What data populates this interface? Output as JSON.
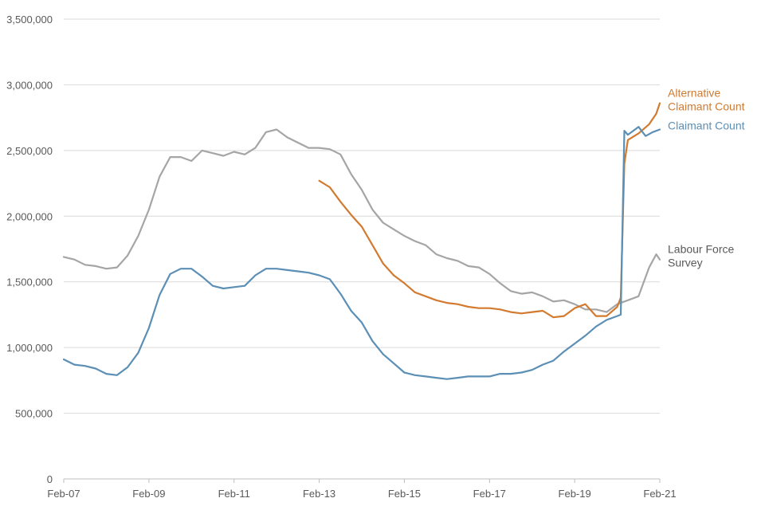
{
  "chart_data": {
    "type": "line",
    "title": "",
    "xlabel": "",
    "ylabel": "",
    "ylim": [
      0,
      3500000
    ],
    "yticks": [
      0,
      500000,
      1000000,
      1500000,
      2000000,
      2500000,
      3000000,
      3500000
    ],
    "ytick_labels": [
      "0",
      "500,000",
      "1,000,000",
      "1,500,000",
      "2,000,000",
      "2,500,000",
      "3,000,000",
      "3,500,000"
    ],
    "xlim": [
      "2007-02",
      "2021-02"
    ],
    "xtick_labels": [
      "Feb-07",
      "Feb-09",
      "Feb-11",
      "Feb-13",
      "Feb-15",
      "Feb-17",
      "Feb-19",
      "Feb-21"
    ],
    "xtick_values": [
      "2007-02",
      "2009-02",
      "2011-02",
      "2013-02",
      "2015-02",
      "2017-02",
      "2019-02",
      "2021-02"
    ],
    "grid": "horizontal",
    "legend": "inline-right",
    "series": [
      {
        "name": "Labour Force Survey",
        "label_lines": [
          "Labour Force",
          "Survey"
        ],
        "color": "#a5a5a5",
        "points": [
          [
            "2007-02",
            1690000
          ],
          [
            "2007-05",
            1670000
          ],
          [
            "2007-08",
            1630000
          ],
          [
            "2007-11",
            1620000
          ],
          [
            "2008-02",
            1600000
          ],
          [
            "2008-05",
            1610000
          ],
          [
            "2008-08",
            1700000
          ],
          [
            "2008-11",
            1850000
          ],
          [
            "2009-02",
            2050000
          ],
          [
            "2009-05",
            2300000
          ],
          [
            "2009-08",
            2450000
          ],
          [
            "2009-11",
            2450000
          ],
          [
            "2010-02",
            2420000
          ],
          [
            "2010-05",
            2500000
          ],
          [
            "2010-08",
            2480000
          ],
          [
            "2010-11",
            2460000
          ],
          [
            "2011-02",
            2490000
          ],
          [
            "2011-05",
            2470000
          ],
          [
            "2011-08",
            2520000
          ],
          [
            "2011-11",
            2640000
          ],
          [
            "2012-02",
            2660000
          ],
          [
            "2012-05",
            2600000
          ],
          [
            "2012-08",
            2560000
          ],
          [
            "2012-11",
            2520000
          ],
          [
            "2013-02",
            2520000
          ],
          [
            "2013-05",
            2510000
          ],
          [
            "2013-08",
            2470000
          ],
          [
            "2013-11",
            2320000
          ],
          [
            "2014-02",
            2200000
          ],
          [
            "2014-05",
            2050000
          ],
          [
            "2014-08",
            1950000
          ],
          [
            "2014-11",
            1900000
          ],
          [
            "2015-02",
            1850000
          ],
          [
            "2015-05",
            1810000
          ],
          [
            "2015-08",
            1780000
          ],
          [
            "2015-11",
            1710000
          ],
          [
            "2016-02",
            1680000
          ],
          [
            "2016-05",
            1660000
          ],
          [
            "2016-08",
            1620000
          ],
          [
            "2016-11",
            1610000
          ],
          [
            "2017-02",
            1560000
          ],
          [
            "2017-05",
            1490000
          ],
          [
            "2017-08",
            1430000
          ],
          [
            "2017-11",
            1410000
          ],
          [
            "2018-02",
            1420000
          ],
          [
            "2018-05",
            1390000
          ],
          [
            "2018-08",
            1350000
          ],
          [
            "2018-11",
            1360000
          ],
          [
            "2019-02",
            1330000
          ],
          [
            "2019-05",
            1290000
          ],
          [
            "2019-08",
            1290000
          ],
          [
            "2019-11",
            1270000
          ],
          [
            "2020-02",
            1330000
          ],
          [
            "2020-05",
            1360000
          ],
          [
            "2020-08",
            1390000
          ],
          [
            "2020-11",
            1610000
          ],
          [
            "2021-01",
            1710000
          ],
          [
            "2021-02",
            1670000
          ]
        ]
      },
      {
        "name": "Alternative Claimant Count",
        "label_lines": [
          "Alternative",
          "Claimant Count"
        ],
        "color": "#d27a2f",
        "points": [
          [
            "2013-02",
            2270000
          ],
          [
            "2013-05",
            2220000
          ],
          [
            "2013-08",
            2110000
          ],
          [
            "2013-11",
            2010000
          ],
          [
            "2014-02",
            1920000
          ],
          [
            "2014-05",
            1780000
          ],
          [
            "2014-08",
            1640000
          ],
          [
            "2014-11",
            1550000
          ],
          [
            "2015-02",
            1490000
          ],
          [
            "2015-05",
            1420000
          ],
          [
            "2015-08",
            1390000
          ],
          [
            "2015-11",
            1360000
          ],
          [
            "2016-02",
            1340000
          ],
          [
            "2016-05",
            1330000
          ],
          [
            "2016-08",
            1310000
          ],
          [
            "2016-11",
            1300000
          ],
          [
            "2017-02",
            1300000
          ],
          [
            "2017-05",
            1290000
          ],
          [
            "2017-08",
            1270000
          ],
          [
            "2017-11",
            1260000
          ],
          [
            "2018-02",
            1270000
          ],
          [
            "2018-05",
            1280000
          ],
          [
            "2018-08",
            1230000
          ],
          [
            "2018-11",
            1240000
          ],
          [
            "2019-02",
            1300000
          ],
          [
            "2019-05",
            1330000
          ],
          [
            "2019-08",
            1240000
          ],
          [
            "2019-11",
            1240000
          ],
          [
            "2020-02",
            1310000
          ],
          [
            "2020-03",
            1380000
          ],
          [
            "2020-04",
            2400000
          ],
          [
            "2020-05",
            2580000
          ],
          [
            "2020-08",
            2630000
          ],
          [
            "2020-11",
            2700000
          ],
          [
            "2021-01",
            2780000
          ],
          [
            "2021-02",
            2860000
          ]
        ]
      },
      {
        "name": "Claimant Count",
        "label_lines": [
          "Claimant Count"
        ],
        "color": "#5b8fb5",
        "points": [
          [
            "2007-02",
            910000
          ],
          [
            "2007-05",
            870000
          ],
          [
            "2007-08",
            860000
          ],
          [
            "2007-11",
            840000
          ],
          [
            "2008-02",
            800000
          ],
          [
            "2008-05",
            790000
          ],
          [
            "2008-08",
            850000
          ],
          [
            "2008-11",
            960000
          ],
          [
            "2009-02",
            1150000
          ],
          [
            "2009-05",
            1400000
          ],
          [
            "2009-08",
            1560000
          ],
          [
            "2009-11",
            1600000
          ],
          [
            "2010-02",
            1600000
          ],
          [
            "2010-05",
            1540000
          ],
          [
            "2010-08",
            1470000
          ],
          [
            "2010-11",
            1450000
          ],
          [
            "2011-02",
            1460000
          ],
          [
            "2011-05",
            1470000
          ],
          [
            "2011-08",
            1550000
          ],
          [
            "2011-11",
            1600000
          ],
          [
            "2012-02",
            1600000
          ],
          [
            "2012-05",
            1590000
          ],
          [
            "2012-08",
            1580000
          ],
          [
            "2012-11",
            1570000
          ],
          [
            "2013-02",
            1550000
          ],
          [
            "2013-05",
            1520000
          ],
          [
            "2013-08",
            1410000
          ],
          [
            "2013-11",
            1280000
          ],
          [
            "2014-02",
            1190000
          ],
          [
            "2014-05",
            1050000
          ],
          [
            "2014-08",
            950000
          ],
          [
            "2014-11",
            880000
          ],
          [
            "2015-02",
            810000
          ],
          [
            "2015-05",
            790000
          ],
          [
            "2015-08",
            780000
          ],
          [
            "2015-11",
            770000
          ],
          [
            "2016-02",
            760000
          ],
          [
            "2016-05",
            770000
          ],
          [
            "2016-08",
            780000
          ],
          [
            "2016-11",
            780000
          ],
          [
            "2017-02",
            780000
          ],
          [
            "2017-05",
            800000
          ],
          [
            "2017-08",
            800000
          ],
          [
            "2017-11",
            810000
          ],
          [
            "2018-02",
            830000
          ],
          [
            "2018-05",
            870000
          ],
          [
            "2018-08",
            900000
          ],
          [
            "2018-11",
            970000
          ],
          [
            "2019-02",
            1030000
          ],
          [
            "2019-05",
            1090000
          ],
          [
            "2019-08",
            1160000
          ],
          [
            "2019-11",
            1210000
          ],
          [
            "2020-02",
            1240000
          ],
          [
            "2020-03",
            1250000
          ],
          [
            "2020-04",
            2650000
          ],
          [
            "2020-05",
            2620000
          ],
          [
            "2020-08",
            2680000
          ],
          [
            "2020-10",
            2610000
          ],
          [
            "2020-12",
            2640000
          ],
          [
            "2021-02",
            2660000
          ]
        ]
      }
    ]
  }
}
